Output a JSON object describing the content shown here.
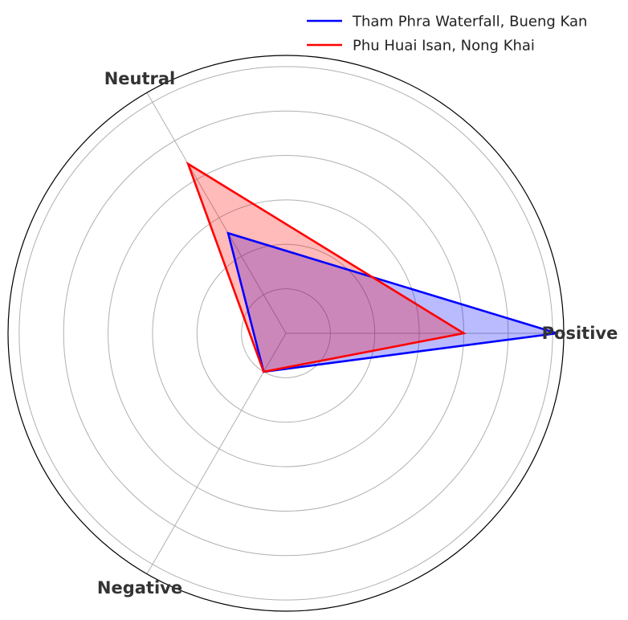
{
  "chart_data": {
    "type": "radar",
    "axes": [
      "Positive",
      "Neutral",
      "Negative"
    ],
    "series": [
      {
        "name": "Tham Phra Waterfall, Bueng Kan",
        "values": [
          6.1,
          2.6,
          1.0
        ],
        "color": "#0000ff",
        "fill": "#0000ff"
      },
      {
        "name": "Phu Huai Isan, Nong Khai",
        "values": [
          4.0,
          4.4,
          1.0
        ],
        "color": "#ff0000",
        "fill": "#ff0000"
      }
    ],
    "rmax": 6.25,
    "rings": [
      1,
      2,
      3,
      4,
      5,
      6
    ],
    "grid": true,
    "legend": "top-right"
  }
}
